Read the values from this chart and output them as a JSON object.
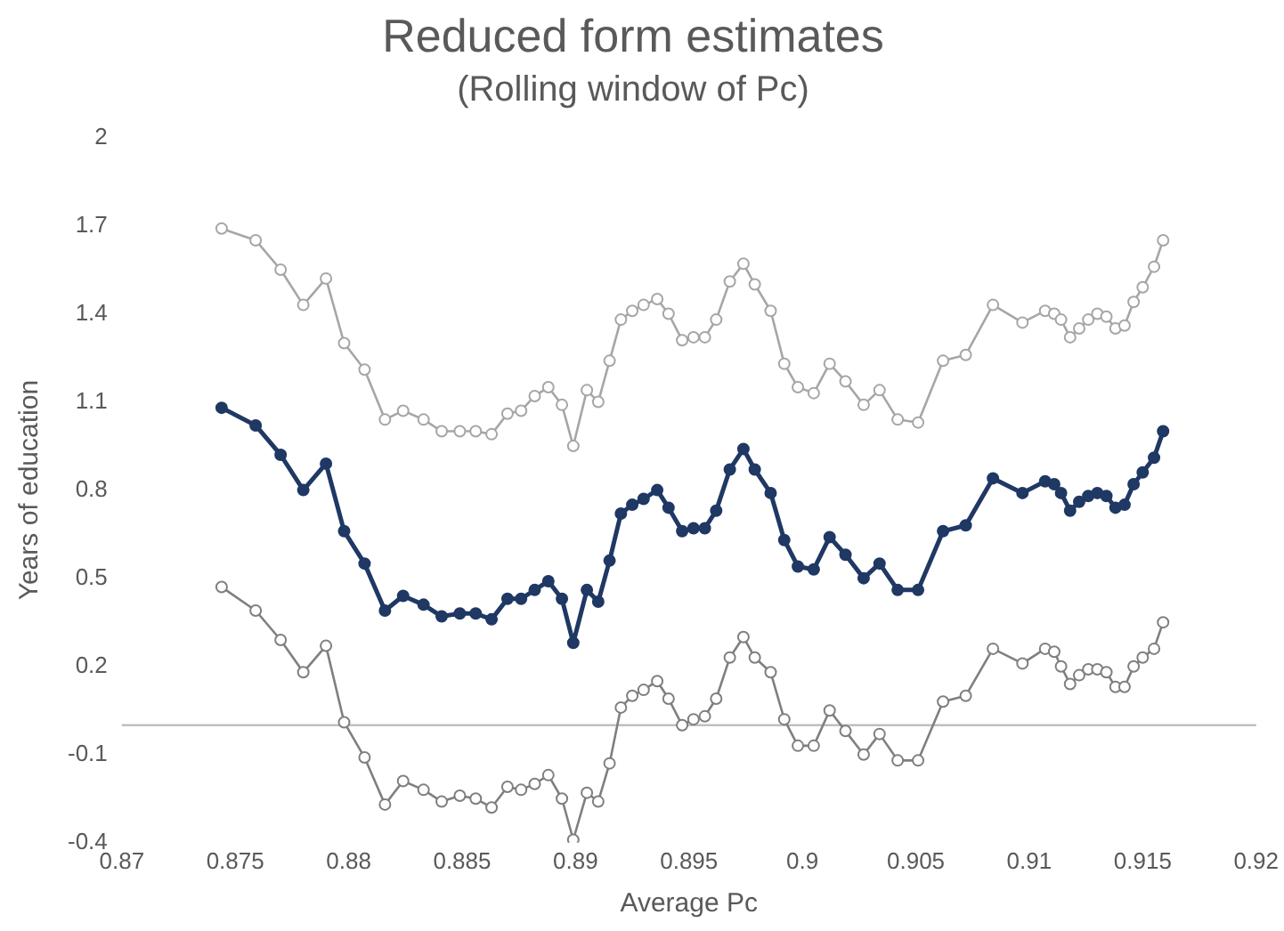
{
  "chart_data": {
    "type": "line",
    "title": "Reduced form estimates",
    "subtitle": "(Rolling window of Pc)",
    "xlabel": "Average Pc",
    "ylabel": "Years of education",
    "x": [
      0.8744,
      0.8759,
      0.877,
      0.878,
      0.879,
      0.8798,
      0.8807,
      0.8816,
      0.8824,
      0.8833,
      0.8841,
      0.8849,
      0.8856,
      0.8863,
      0.887,
      0.8876,
      0.8882,
      0.8888,
      0.8894,
      0.8899,
      0.8905,
      0.891,
      0.8915,
      0.892,
      0.8925,
      0.893,
      0.8936,
      0.8941,
      0.8947,
      0.8952,
      0.8957,
      0.8962,
      0.8968,
      0.8974,
      0.8979,
      0.8986,
      0.8992,
      0.8998,
      0.9005,
      0.9012,
      0.9019,
      0.9027,
      0.9034,
      0.9042,
      0.9051,
      0.9062,
      0.9072,
      0.9084,
      0.9097,
      0.9107,
      0.9111,
      0.9114,
      0.9118,
      0.9122,
      0.9126,
      0.913,
      0.9134,
      0.9138,
      0.9142,
      0.9146,
      0.915,
      0.9155,
      0.9159
    ],
    "series": [
      {
        "color": "#a6a6a6",
        "values": [
          1.69,
          1.65,
          1.55,
          1.43,
          1.52,
          1.3,
          1.21,
          1.04,
          1.07,
          1.04,
          1.0,
          1.0,
          1.0,
          0.99,
          1.06,
          1.07,
          1.12,
          1.15,
          1.09,
          0.95,
          1.14,
          1.1,
          1.24,
          1.38,
          1.41,
          1.43,
          1.45,
          1.4,
          1.31,
          1.32,
          1.32,
          1.38,
          1.51,
          1.57,
          1.5,
          1.41,
          1.23,
          1.15,
          1.13,
          1.23,
          1.17,
          1.09,
          1.14,
          1.04,
          1.03,
          1.24,
          1.26,
          1.43,
          1.37,
          1.41,
          1.4,
          1.38,
          1.32,
          1.35,
          1.38,
          1.4,
          1.39,
          1.35,
          1.36,
          1.44,
          1.49,
          1.56,
          1.65
        ]
      },
      {
        "color": "#1f3864",
        "values": [
          1.08,
          1.02,
          0.92,
          0.8,
          0.89,
          0.66,
          0.55,
          0.39,
          0.44,
          0.41,
          0.37,
          0.38,
          0.38,
          0.36,
          0.43,
          0.43,
          0.46,
          0.49,
          0.43,
          0.28,
          0.46,
          0.42,
          0.56,
          0.72,
          0.75,
          0.77,
          0.8,
          0.74,
          0.66,
          0.67,
          0.67,
          0.73,
          0.87,
          0.94,
          0.87,
          0.79,
          0.63,
          0.54,
          0.53,
          0.64,
          0.58,
          0.5,
          0.55,
          0.46,
          0.46,
          0.66,
          0.68,
          0.84,
          0.79,
          0.83,
          0.82,
          0.79,
          0.73,
          0.76,
          0.78,
          0.79,
          0.78,
          0.74,
          0.75,
          0.82,
          0.86,
          0.91,
          1.0
        ]
      },
      {
        "color": "#7f7f7f",
        "values": [
          0.47,
          0.39,
          0.29,
          0.18,
          0.27,
          0.01,
          -0.11,
          -0.27,
          -0.19,
          -0.22,
          -0.26,
          -0.24,
          -0.25,
          -0.28,
          -0.21,
          -0.22,
          -0.2,
          -0.17,
          -0.25,
          -0.39,
          -0.23,
          -0.26,
          -0.13,
          0.06,
          0.1,
          0.12,
          0.15,
          0.09,
          0.0,
          0.02,
          0.03,
          0.09,
          0.23,
          0.3,
          0.23,
          0.18,
          0.02,
          -0.07,
          -0.07,
          0.05,
          -0.02,
          -0.1,
          -0.03,
          -0.12,
          -0.12,
          0.08,
          0.1,
          0.26,
          0.21,
          0.26,
          0.25,
          0.2,
          0.14,
          0.17,
          0.19,
          0.19,
          0.18,
          0.13,
          0.13,
          0.2,
          0.23,
          0.26,
          0.35
        ]
      }
    ],
    "xlim": [
      0.87,
      0.92
    ],
    "xticks": [
      0.87,
      0.875,
      0.88,
      0.885,
      0.89,
      0.895,
      0.9,
      0.905,
      0.91,
      0.915,
      0.92
    ],
    "ylim": [
      -0.4,
      2
    ],
    "yticks": [
      -0.4,
      -0.1,
      0.2,
      0.5,
      0.8,
      1.1,
      1.4,
      1.7,
      2
    ],
    "ref_lines": [
      {
        "axis": "y",
        "value": 0,
        "color": "#bfbfbf"
      }
    ],
    "grid": false,
    "legend": false,
    "marker": "circle",
    "line_style": "solid"
  }
}
